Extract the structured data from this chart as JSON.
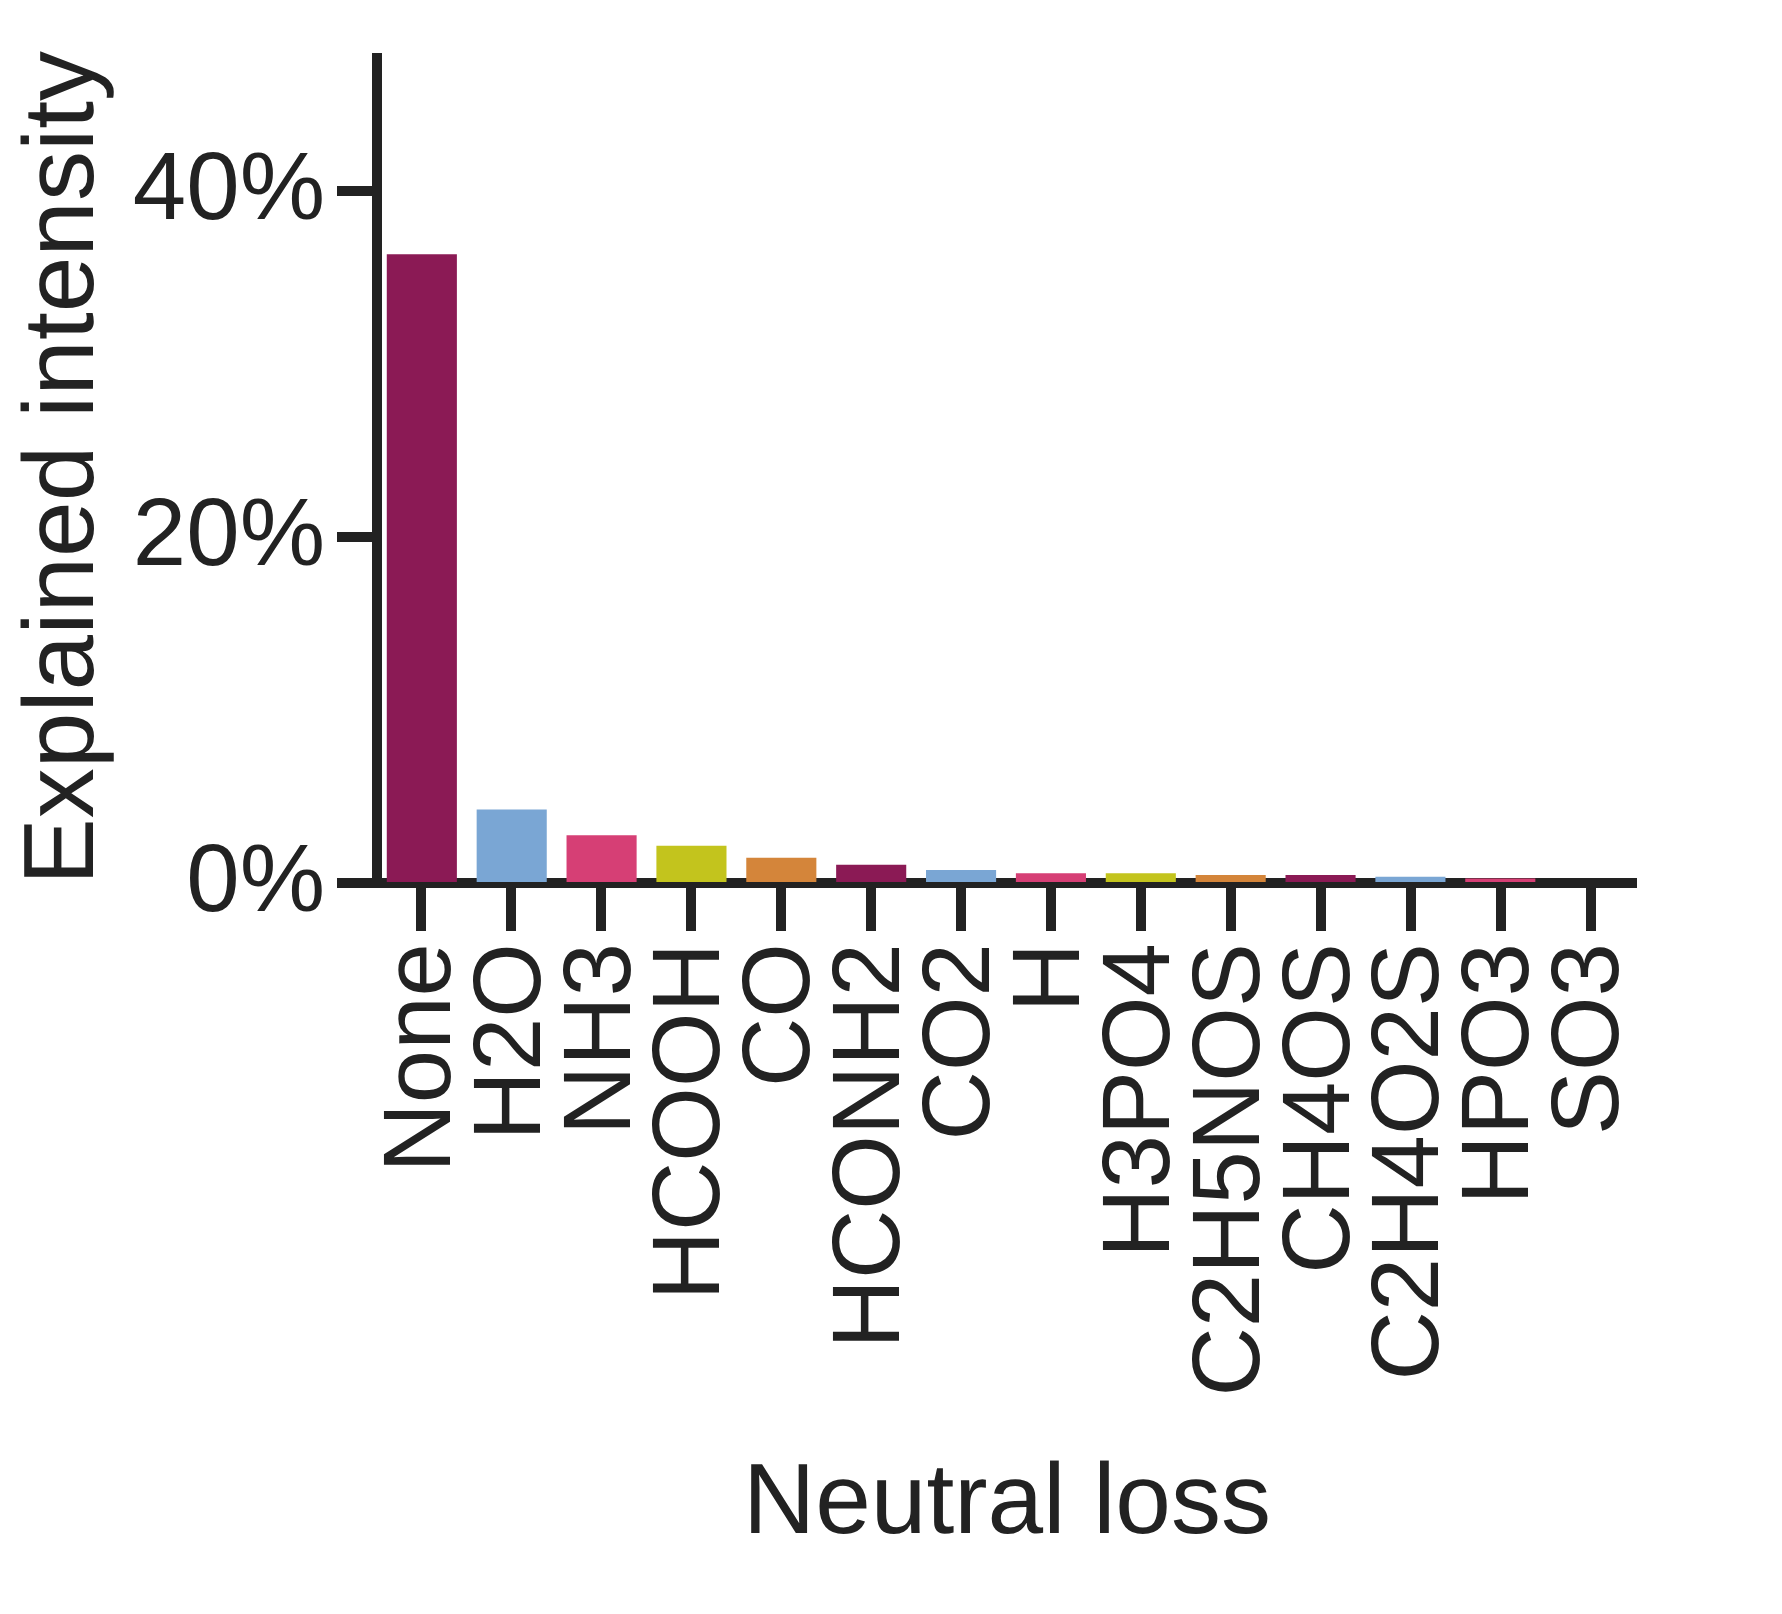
{
  "chart_data": {
    "type": "bar",
    "xlabel": "Neutral loss",
    "ylabel": "Explained intensity",
    "categories": [
      "None",
      "H2O",
      "NH3",
      "HCOOH",
      "CO",
      "HCONH2",
      "CO2",
      "H",
      "H3PO4",
      "C2H5NOS",
      "CH4OS",
      "C2H4O2S",
      "HPO3",
      "SO3"
    ],
    "values": [
      36.3,
      4.2,
      2.7,
      2.1,
      1.4,
      1.0,
      0.7,
      0.5,
      0.5,
      0.4,
      0.4,
      0.3,
      0.2,
      null
    ],
    "colors": [
      "#8b1a55",
      "#7aa6d4",
      "#d63f75",
      "#c3c41d",
      "#d4853a",
      "#8b1a55",
      "#7aa6d4",
      "#d63f75",
      "#c3c41d",
      "#d4853a",
      "#8b1a55",
      "#7aa6d4",
      "#d63f75",
      "#c3c41d"
    ],
    "ylim": [
      0,
      48
    ],
    "yticks": [
      {
        "value": 0,
        "label": "0%"
      },
      {
        "value": 20,
        "label": "20%"
      },
      {
        "value": 40,
        "label": "40%"
      }
    ],
    "grid": false,
    "legend": false
  }
}
